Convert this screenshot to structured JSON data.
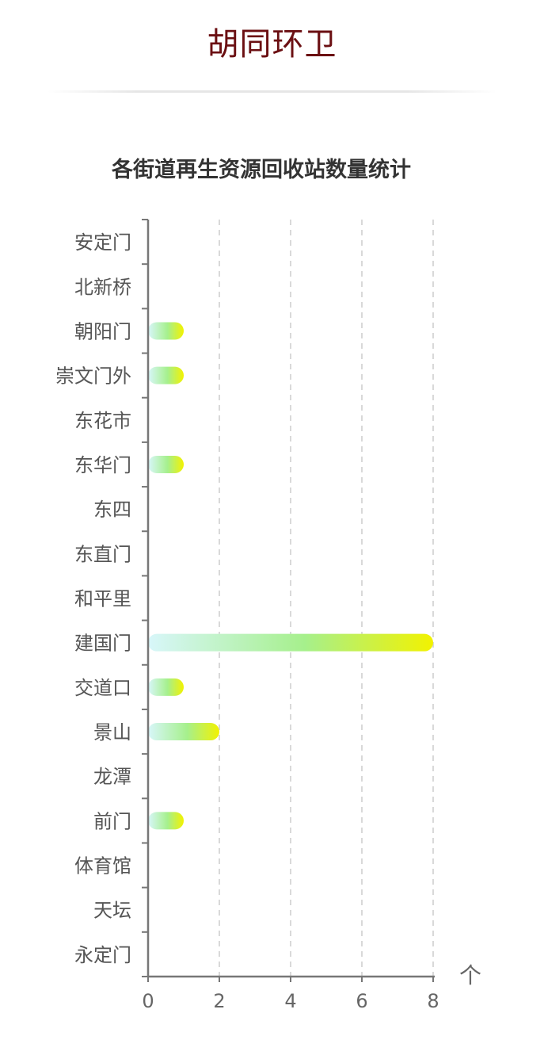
{
  "header": {
    "title": "胡同环卫"
  },
  "chart_data": {
    "type": "bar",
    "orientation": "horizontal",
    "title": "各街道再生资源回收站数量统计",
    "categories": [
      "安定门",
      "北新桥",
      "朝阳门",
      "崇文门外",
      "东花市",
      "东华门",
      "东四",
      "东直门",
      "和平里",
      "建国门",
      "交道口",
      "景山",
      "龙潭",
      "前门",
      "体育馆",
      "天坛",
      "永定门"
    ],
    "values": [
      0,
      0,
      1,
      1,
      0,
      1,
      0,
      0,
      0,
      8,
      1,
      2,
      0,
      1,
      0,
      0,
      0
    ],
    "xlabel": "个",
    "ylabel": "",
    "xlim": [
      0,
      8
    ],
    "xticks": [
      "0",
      "2",
      "4",
      "6",
      "8"
    ],
    "grid": "vertical dashed",
    "colors": {
      "bar_gradient_start": "#d8f6fa",
      "bar_gradient_mid": "#a6f08c",
      "bar_gradient_end": "#f2f200",
      "axis": "#777777",
      "grid": "#d9d9d9",
      "title": "#333333",
      "label": "#555555"
    }
  },
  "colors": {
    "header_title": "#6b0f12"
  }
}
